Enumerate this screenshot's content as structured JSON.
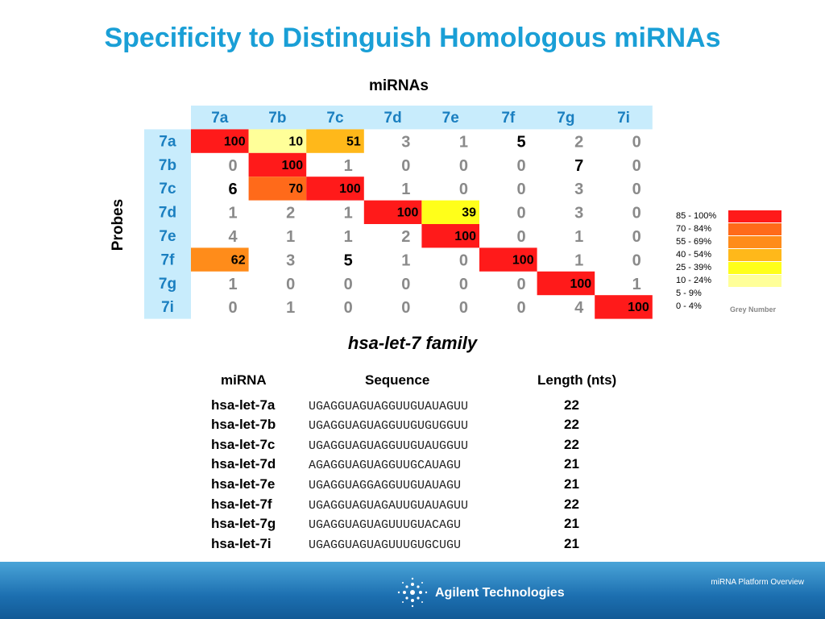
{
  "slide": {
    "title": "Specificity to Distinguish Homologous miRNAs",
    "heatmap_column_label": "miRNAs",
    "heatmap_row_label": "Probes",
    "heatmap_caption": "hsa-let-7 family"
  },
  "chart_data": {
    "type": "heatmap",
    "columns": [
      "7a",
      "7b",
      "7c",
      "7d",
      "7e",
      "7f",
      "7g",
      "7i"
    ],
    "rows": [
      "7a",
      "7b",
      "7c",
      "7d",
      "7e",
      "7f",
      "7g",
      "7i"
    ],
    "values": [
      [
        100,
        10,
        51,
        3,
        1,
        5,
        2,
        0
      ],
      [
        0,
        100,
        1,
        0,
        0,
        0,
        7,
        0
      ],
      [
        6,
        70,
        100,
        1,
        0,
        0,
        3,
        0
      ],
      [
        1,
        2,
        1,
        100,
        39,
        0,
        3,
        0
      ],
      [
        4,
        1,
        1,
        2,
        100,
        0,
        1,
        0
      ],
      [
        62,
        3,
        5,
        1,
        0,
        100,
        1,
        0
      ],
      [
        1,
        0,
        0,
        0,
        0,
        0,
        100,
        1
      ],
      [
        0,
        1,
        0,
        0,
        0,
        0,
        4,
        100
      ]
    ],
    "legend": [
      {
        "label": "85 - 100%",
        "color": "#ff1a1a"
      },
      {
        "label": "70 - 84%",
        "color": "#ff6a1a"
      },
      {
        "label": "55 - 69%",
        "color": "#ff8c1a"
      },
      {
        "label": "40 - 54%",
        "color": "#ffb81a"
      },
      {
        "label": "25 - 39%",
        "color": "#ffff1a"
      },
      {
        "label": "10 - 24%",
        "color": "#ffff99"
      },
      {
        "label": "5 - 9%",
        "color": ""
      },
      {
        "label": "0 - 4%",
        "color": ""
      }
    ],
    "legend_note": "Grey Number",
    "header_bg": "#c8ecfc",
    "header_text_color": "#1a7fc0"
  },
  "sequence_table": {
    "headers": {
      "name": "miRNA",
      "sequence": "Sequence",
      "length": "Length (nts)"
    },
    "rows": [
      {
        "name": "hsa-let-7a",
        "sequence": "UGAGGUAGUAGGUUGUAUAGUU",
        "length": "22"
      },
      {
        "name": "hsa-let-7b",
        "sequence": "UGAGGUAGUAGGUUGUGUGGUU",
        "length": "22"
      },
      {
        "name": "hsa-let-7c",
        "sequence": "UGAGGUAGUAGGUUGUAUGGUU",
        "length": "22"
      },
      {
        "name": "hsa-let-7d",
        "sequence": "AGAGGUAGUAGGUUGCAUAGU",
        "length": "21"
      },
      {
        "name": "hsa-let-7e",
        "sequence": "UGAGGUAGGAGGUUGUAUAGU",
        "length": "21"
      },
      {
        "name": "hsa-let-7f",
        "sequence": "UGAGGUAGUAGAUUGUAUAGUU",
        "length": "22"
      },
      {
        "name": "hsa-let-7g",
        "sequence": "UGAGGUAGUAGUUUGUACAGU",
        "length": "21"
      },
      {
        "name": "hsa-let-7i",
        "sequence": "UGAGGUAGUAGUUUGUGCUGU",
        "length": "21"
      }
    ]
  },
  "footer": {
    "brand": "Agilent Technologies",
    "note": "miRNA Platform Overview",
    "brand_icon": "agilent-spark-icon"
  }
}
